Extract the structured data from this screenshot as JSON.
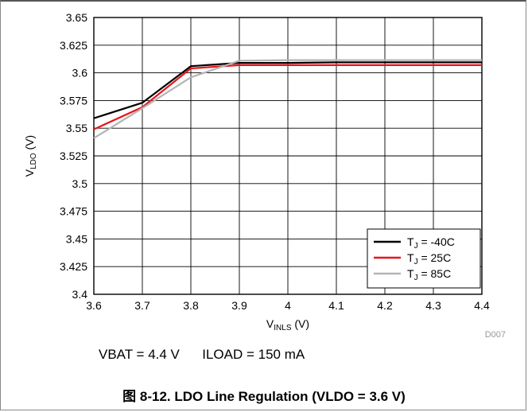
{
  "chart_data": {
    "type": "line",
    "xlabel": {
      "main": "V",
      "sub": "INLS",
      "suffix": " (V)"
    },
    "ylabel": {
      "main": "V",
      "sub": "LDO",
      "suffix": " (V)"
    },
    "xlim": [
      3.6,
      4.4
    ],
    "ylim": [
      3.4,
      3.65
    ],
    "x_ticks": [
      "3.6",
      "3.7",
      "3.8",
      "3.9",
      "4",
      "4.1",
      "4.2",
      "4.3",
      "4.4"
    ],
    "y_ticks": [
      "3.4",
      "3.425",
      "3.45",
      "3.475",
      "3.5",
      "3.525",
      "3.55",
      "3.575",
      "3.6",
      "3.625",
      "3.65"
    ],
    "grid": true,
    "legend_position": "bottom-right",
    "series": [
      {
        "name": {
          "main": "T",
          "sub": "J",
          "suffix": " = -40C"
        },
        "color": "#000000",
        "x": [
          3.6,
          3.7,
          3.8,
          3.9,
          4.0,
          4.1,
          4.2,
          4.3,
          4.4
        ],
        "y": [
          3.559,
          3.573,
          3.606,
          3.609,
          3.609,
          3.6095,
          3.6095,
          3.6095,
          3.6095
        ]
      },
      {
        "name": {
          "main": "T",
          "sub": "J",
          "suffix": " = 25C"
        },
        "color": "#e8141a",
        "x": [
          3.6,
          3.7,
          3.8,
          3.9,
          4.0,
          4.1,
          4.2,
          4.3,
          4.4
        ],
        "y": [
          3.549,
          3.569,
          3.604,
          3.607,
          3.607,
          3.607,
          3.607,
          3.607,
          3.607
        ]
      },
      {
        "name": {
          "main": "T",
          "sub": "J",
          "suffix": " = 85C"
        },
        "color": "#b4b4b4",
        "x": [
          3.6,
          3.7,
          3.8,
          3.9,
          4.0,
          4.1,
          4.2,
          4.3,
          4.4
        ],
        "y": [
          3.541,
          3.568,
          3.596,
          3.611,
          3.6115,
          3.6115,
          3.6115,
          3.6115,
          3.6115
        ]
      }
    ],
    "figure_id": "D007"
  },
  "conditions": "VBAT = 4.4 V      ILOAD = 150 mA",
  "caption": "图 8-12. LDO Line Regulation (VLDO = 3.6 V)"
}
